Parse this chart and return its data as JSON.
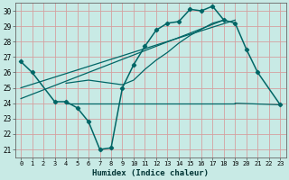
{
  "xlabel": "Humidex (Indice chaleur)",
  "bg_color": "#c8eae5",
  "grid_color": "#d4a0a0",
  "line_color": "#006666",
  "xlim": [
    -0.5,
    23.5
  ],
  "ylim": [
    20.5,
    30.5
  ],
  "xticks": [
    0,
    1,
    2,
    3,
    4,
    5,
    6,
    7,
    8,
    9,
    10,
    11,
    12,
    13,
    14,
    15,
    16,
    17,
    18,
    19,
    20,
    21,
    22,
    23
  ],
  "yticks": [
    21,
    22,
    23,
    24,
    25,
    26,
    27,
    28,
    29,
    30
  ],
  "main_line": {
    "x": [
      0,
      1,
      3,
      4,
      5,
      6,
      7,
      8,
      9,
      10,
      11,
      12,
      13,
      14,
      15,
      16,
      17,
      18,
      19,
      20,
      21,
      23
    ],
    "y": [
      26.7,
      26.0,
      24.1,
      24.1,
      23.7,
      22.8,
      21.0,
      21.1,
      25.0,
      26.5,
      27.7,
      28.75,
      29.2,
      29.3,
      30.1,
      30.0,
      30.3,
      29.4,
      29.2,
      27.5,
      26.0,
      23.9
    ]
  },
  "flat_line": {
    "x": [
      4,
      19
    ],
    "y": [
      24.0,
      24.0
    ]
  },
  "flat_line2": {
    "x": [
      19,
      23
    ],
    "y": [
      24.0,
      23.9
    ]
  },
  "rising_line1": {
    "x": [
      0,
      19
    ],
    "y": [
      25.0,
      29.4
    ]
  },
  "rising_line2": {
    "x": [
      0,
      18
    ],
    "y": [
      24.3,
      29.4
    ]
  },
  "smooth_curve": {
    "x": [
      4,
      5,
      6,
      7,
      8,
      9,
      10,
      11,
      12,
      13,
      14,
      15,
      16,
      17,
      18
    ],
    "y": [
      25.3,
      25.4,
      25.5,
      25.4,
      25.3,
      25.2,
      25.5,
      26.2,
      26.8,
      27.3,
      27.9,
      28.4,
      28.8,
      29.2,
      29.4
    ]
  }
}
